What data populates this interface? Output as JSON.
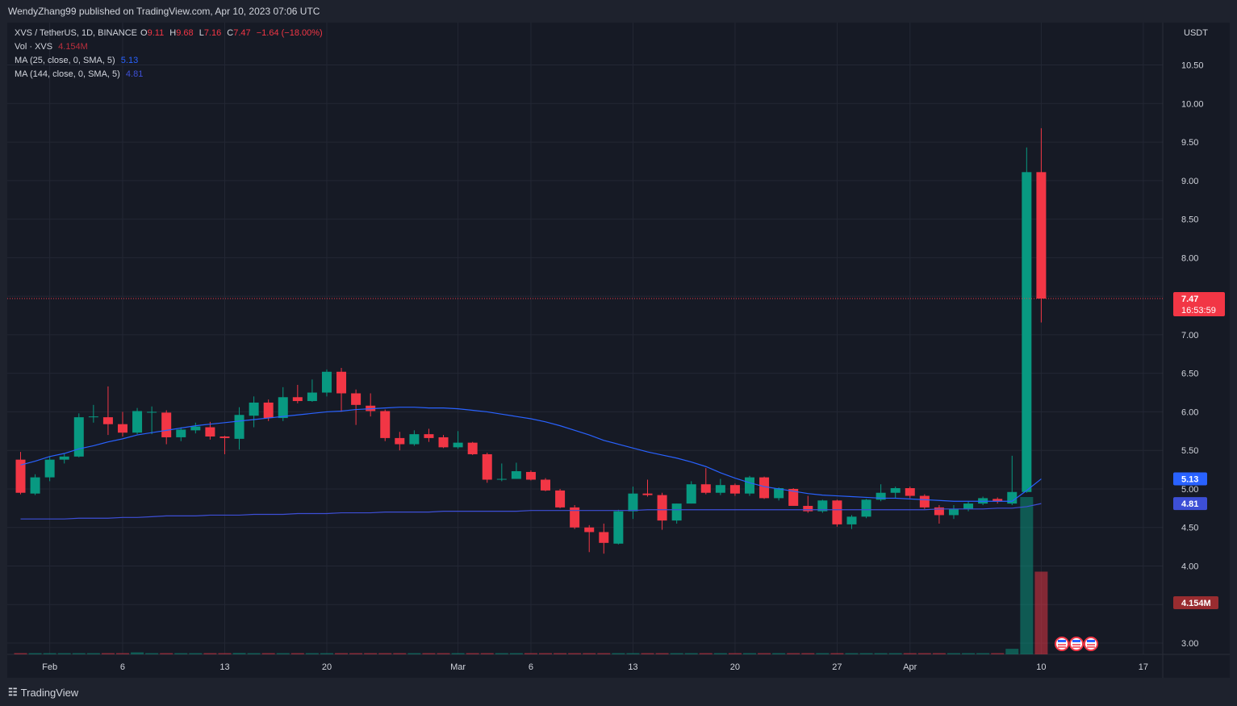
{
  "publisher_line": "WendyZhang99 published on TradingView.com, Apr 10, 2023 07:06 UTC",
  "symbol": {
    "pair": "XVS / TetherUS, 1D, BINANCE",
    "open_label": "O",
    "open": "9.11",
    "high_label": "H",
    "high": "9.68",
    "low_label": "L",
    "low": "7.16",
    "close_label": "C",
    "close": "7.47",
    "change": "−1.64 (−18.00%)"
  },
  "volume_legend": {
    "label": "Vol · XVS",
    "value": "4.154M"
  },
  "ma25_legend": {
    "label": "MA (25, close, 0, SMA, 5)",
    "value": "5.13"
  },
  "ma144_legend": {
    "label": "MA (144, close, 0, SMA, 5)",
    "value": "4.81"
  },
  "footer_brand": "TradingView",
  "colors": {
    "up": "#089981",
    "down": "#f23645",
    "ma25": "#2962ff",
    "ma144": "#3d4fd6",
    "background": "#161a25",
    "grid": "#232734"
  },
  "chart_data": {
    "type": "candlestick",
    "currency": "USDT",
    "price_ticks": [
      "10.50",
      "10.00",
      "9.50",
      "9.00",
      "8.50",
      "8.00",
      "7.50",
      "7.00",
      "6.50",
      "6.00",
      "5.50",
      "5.00",
      "4.50",
      "4.00",
      "3.50",
      "3.00"
    ],
    "price_range": [
      2.55,
      11.05
    ],
    "date_ticks": [
      {
        "index": 2,
        "label": "Feb"
      },
      {
        "index": 7,
        "label": "6"
      },
      {
        "index": 14,
        "label": "13"
      },
      {
        "index": 21,
        "label": "20"
      },
      {
        "index": 30,
        "label": "Mar"
      },
      {
        "index": 35,
        "label": "6"
      },
      {
        "index": 42,
        "label": "13"
      },
      {
        "index": 49,
        "label": "20"
      },
      {
        "index": 56,
        "label": "27"
      },
      {
        "index": 61,
        "label": "Apr"
      },
      {
        "index": 70,
        "label": "10"
      },
      {
        "index": 77,
        "label": "17"
      }
    ],
    "last_price": "7.47",
    "countdown": "16:53:59",
    "ma25_value": "5.13",
    "ma144_value": "4.81",
    "volume_last": "4.154M",
    "candles": [
      {
        "o": 5.38,
        "h": 5.48,
        "l": 4.93,
        "c": 4.95
      },
      {
        "o": 4.94,
        "h": 5.19,
        "l": 4.92,
        "c": 5.15
      },
      {
        "o": 5.15,
        "h": 5.42,
        "l": 5.1,
        "c": 5.38
      },
      {
        "o": 5.38,
        "h": 5.46,
        "l": 5.33,
        "c": 5.42
      },
      {
        "o": 5.42,
        "h": 5.98,
        "l": 5.41,
        "c": 5.93
      },
      {
        "o": 5.93,
        "h": 6.09,
        "l": 5.86,
        "c": 5.94
      },
      {
        "o": 5.93,
        "h": 6.33,
        "l": 5.7,
        "c": 5.84
      },
      {
        "o": 5.84,
        "h": 6.0,
        "l": 5.68,
        "c": 5.73
      },
      {
        "o": 5.73,
        "h": 6.05,
        "l": 5.71,
        "c": 6.01
      },
      {
        "o": 6.0,
        "h": 6.07,
        "l": 5.71,
        "c": 6.0
      },
      {
        "o": 5.99,
        "h": 6.02,
        "l": 5.58,
        "c": 5.67
      },
      {
        "o": 5.67,
        "h": 5.8,
        "l": 5.62,
        "c": 5.77
      },
      {
        "o": 5.76,
        "h": 5.86,
        "l": 5.72,
        "c": 5.81
      },
      {
        "o": 5.8,
        "h": 5.87,
        "l": 5.64,
        "c": 5.68
      },
      {
        "o": 5.68,
        "h": 5.69,
        "l": 5.45,
        "c": 5.66
      },
      {
        "o": 5.65,
        "h": 6.06,
        "l": 5.51,
        "c": 5.96
      },
      {
        "o": 5.95,
        "h": 6.2,
        "l": 5.8,
        "c": 6.12
      },
      {
        "o": 6.12,
        "h": 6.16,
        "l": 5.88,
        "c": 5.92
      },
      {
        "o": 5.92,
        "h": 6.32,
        "l": 5.88,
        "c": 6.19
      },
      {
        "o": 6.19,
        "h": 6.35,
        "l": 6.11,
        "c": 6.14
      },
      {
        "o": 6.14,
        "h": 6.42,
        "l": 6.13,
        "c": 6.25
      },
      {
        "o": 6.25,
        "h": 6.55,
        "l": 6.2,
        "c": 6.52
      },
      {
        "o": 6.52,
        "h": 6.57,
        "l": 6.0,
        "c": 6.24
      },
      {
        "o": 6.24,
        "h": 6.29,
        "l": 5.83,
        "c": 6.09
      },
      {
        "o": 6.08,
        "h": 6.24,
        "l": 5.94,
        "c": 6.01
      },
      {
        "o": 6.01,
        "h": 6.03,
        "l": 5.62,
        "c": 5.66
      },
      {
        "o": 5.66,
        "h": 5.74,
        "l": 5.5,
        "c": 5.58
      },
      {
        "o": 5.58,
        "h": 5.76,
        "l": 5.56,
        "c": 5.71
      },
      {
        "o": 5.71,
        "h": 5.78,
        "l": 5.61,
        "c": 5.66
      },
      {
        "o": 5.67,
        "h": 5.7,
        "l": 5.53,
        "c": 5.54
      },
      {
        "o": 5.54,
        "h": 5.75,
        "l": 5.52,
        "c": 5.6
      },
      {
        "o": 5.6,
        "h": 5.61,
        "l": 5.44,
        "c": 5.45
      },
      {
        "o": 5.45,
        "h": 5.47,
        "l": 5.08,
        "c": 5.12
      },
      {
        "o": 5.12,
        "h": 5.33,
        "l": 5.1,
        "c": 5.13
      },
      {
        "o": 5.13,
        "h": 5.34,
        "l": 5.13,
        "c": 5.23
      },
      {
        "o": 5.22,
        "h": 5.24,
        "l": 5.11,
        "c": 5.12
      },
      {
        "o": 5.12,
        "h": 5.14,
        "l": 4.97,
        "c": 4.98
      },
      {
        "o": 4.98,
        "h": 5.0,
        "l": 4.75,
        "c": 4.76
      },
      {
        "o": 4.76,
        "h": 4.79,
        "l": 4.48,
        "c": 4.5
      },
      {
        "o": 4.5,
        "h": 4.53,
        "l": 4.18,
        "c": 4.44
      },
      {
        "o": 4.44,
        "h": 4.55,
        "l": 4.16,
        "c": 4.3
      },
      {
        "o": 4.29,
        "h": 4.73,
        "l": 4.28,
        "c": 4.71
      },
      {
        "o": 4.71,
        "h": 5.03,
        "l": 4.61,
        "c": 4.94
      },
      {
        "o": 4.94,
        "h": 5.12,
        "l": 4.9,
        "c": 4.92
      },
      {
        "o": 4.92,
        "h": 4.95,
        "l": 4.47,
        "c": 4.59
      },
      {
        "o": 4.59,
        "h": 4.81,
        "l": 4.55,
        "c": 4.81
      },
      {
        "o": 4.81,
        "h": 5.1,
        "l": 4.81,
        "c": 5.06
      },
      {
        "o": 5.06,
        "h": 5.27,
        "l": 4.93,
        "c": 4.95
      },
      {
        "o": 4.95,
        "h": 5.13,
        "l": 4.92,
        "c": 5.05
      },
      {
        "o": 5.05,
        "h": 5.07,
        "l": 4.91,
        "c": 4.94
      },
      {
        "o": 4.94,
        "h": 5.17,
        "l": 4.91,
        "c": 5.15
      },
      {
        "o": 5.15,
        "h": 5.16,
        "l": 4.87,
        "c": 4.88
      },
      {
        "o": 4.88,
        "h": 5.02,
        "l": 4.85,
        "c": 5.01
      },
      {
        "o": 5.0,
        "h": 5.01,
        "l": 4.78,
        "c": 4.78
      },
      {
        "o": 4.78,
        "h": 4.91,
        "l": 4.69,
        "c": 4.71
      },
      {
        "o": 4.71,
        "h": 4.86,
        "l": 4.69,
        "c": 4.85
      },
      {
        "o": 4.85,
        "h": 4.86,
        "l": 4.51,
        "c": 4.54
      },
      {
        "o": 4.54,
        "h": 4.66,
        "l": 4.48,
        "c": 4.64
      },
      {
        "o": 4.64,
        "h": 4.87,
        "l": 4.62,
        "c": 4.86
      },
      {
        "o": 4.86,
        "h": 5.06,
        "l": 4.84,
        "c": 4.95
      },
      {
        "o": 4.95,
        "h": 5.03,
        "l": 4.88,
        "c": 5.01
      },
      {
        "o": 5.01,
        "h": 5.03,
        "l": 4.88,
        "c": 4.91
      },
      {
        "o": 4.91,
        "h": 4.93,
        "l": 4.74,
        "c": 4.76
      },
      {
        "o": 4.76,
        "h": 4.79,
        "l": 4.55,
        "c": 4.66
      },
      {
        "o": 4.66,
        "h": 4.79,
        "l": 4.61,
        "c": 4.74
      },
      {
        "o": 4.74,
        "h": 4.84,
        "l": 4.71,
        "c": 4.81
      },
      {
        "o": 4.81,
        "h": 4.9,
        "l": 4.79,
        "c": 4.88
      },
      {
        "o": 4.87,
        "h": 4.89,
        "l": 4.81,
        "c": 4.84
      },
      {
        "o": 4.81,
        "h": 5.43,
        "l": 4.79,
        "c": 4.96
      },
      {
        "o": 4.96,
        "h": 9.43,
        "l": 4.95,
        "c": 9.11
      },
      {
        "o": 9.11,
        "h": 9.68,
        "l": 7.16,
        "c": 7.47
      }
    ],
    "ma25": [
      5.31,
      5.36,
      5.42,
      5.46,
      5.52,
      5.56,
      5.61,
      5.65,
      5.7,
      5.73,
      5.76,
      5.79,
      5.82,
      5.84,
      5.86,
      5.88,
      5.9,
      5.92,
      5.94,
      5.96,
      5.98,
      6.0,
      6.01,
      6.03,
      6.04,
      6.05,
      6.06,
      6.06,
      6.05,
      6.05,
      6.04,
      6.02,
      6.0,
      5.97,
      5.94,
      5.91,
      5.87,
      5.82,
      5.76,
      5.7,
      5.63,
      5.58,
      5.53,
      5.48,
      5.44,
      5.4,
      5.35,
      5.29,
      5.21,
      5.14,
      5.08,
      5.03,
      5.0,
      4.97,
      4.94,
      4.92,
      4.91,
      4.9,
      4.89,
      4.88,
      4.88,
      4.87,
      4.86,
      4.85,
      4.84,
      4.84,
      4.84,
      4.84,
      4.84,
      4.98,
      5.13
    ],
    "ma144": [
      4.61,
      4.61,
      4.61,
      4.61,
      4.62,
      4.62,
      4.62,
      4.63,
      4.63,
      4.64,
      4.65,
      4.65,
      4.65,
      4.66,
      4.66,
      4.66,
      4.67,
      4.67,
      4.67,
      4.68,
      4.68,
      4.68,
      4.69,
      4.69,
      4.69,
      4.7,
      4.7,
      4.7,
      4.7,
      4.71,
      4.71,
      4.71,
      4.71,
      4.71,
      4.71,
      4.72,
      4.72,
      4.72,
      4.72,
      4.72,
      4.72,
      4.72,
      4.72,
      4.73,
      4.73,
      4.73,
      4.73,
      4.73,
      4.73,
      4.73,
      4.73,
      4.73,
      4.73,
      4.73,
      4.73,
      4.73,
      4.73,
      4.73,
      4.73,
      4.73,
      4.73,
      4.73,
      4.73,
      4.74,
      4.74,
      4.74,
      4.74,
      4.75,
      4.75,
      4.77,
      4.81
    ],
    "volumes": [
      0.05,
      0.06,
      0.04,
      0.05,
      0.06,
      0.06,
      0.06,
      0.04,
      0.1,
      0.05,
      0.04,
      0.06,
      0.06,
      0.04,
      0.04,
      0.07,
      0.05,
      0.05,
      0.05,
      0.05,
      0.04,
      0.05,
      0.06,
      0.05,
      0.05,
      0.05,
      0.04,
      0.03,
      0.04,
      0.04,
      0.03,
      0.04,
      0.04,
      0.04,
      0.03,
      0.03,
      0.04,
      0.03,
      0.04,
      0.05,
      0.05,
      0.05,
      0.06,
      0.05,
      0.05,
      0.06,
      0.04,
      0.03,
      0.04,
      0.04,
      0.04,
      0.04,
      0.04,
      0.03,
      0.04,
      0.03,
      0.04,
      0.03,
      0.04,
      0.05,
      0.04,
      0.04,
      0.03,
      0.04,
      0.04,
      0.03,
      0.03,
      0.03,
      0.28,
      7.9,
      4.154
    ]
  }
}
